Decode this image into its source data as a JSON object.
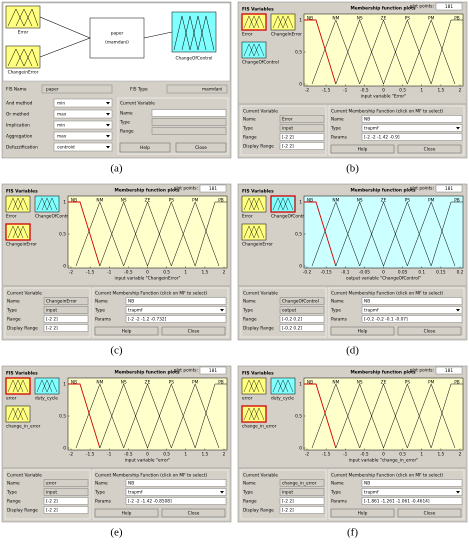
{
  "figure": {
    "panels": [
      {
        "label": "(a)",
        "inputs": [
          "Error",
          "ChangeinError"
        ],
        "system": {
          "name": "paper",
          "type": "(mamdani)"
        },
        "output": "ChangeOfControl",
        "fis_name_label": "FIS Name",
        "fis_name": "paper",
        "fis_type_label": "FIS Type",
        "fis_type": "mamdani",
        "methods": [
          {
            "name": "And method",
            "value": "min"
          },
          {
            "name": "Or method",
            "value": "max"
          },
          {
            "name": "Implication",
            "value": "min"
          },
          {
            "name": "Aggregation",
            "value": "max"
          },
          {
            "name": "Defuzzification",
            "value": "centroid"
          }
        ],
        "current_variable": {
          "title": "Current Variable",
          "fields": [
            "Name",
            "Type",
            "Range"
          ]
        },
        "buttons": [
          "Help",
          "Close"
        ]
      },
      {
        "label": "(b)",
        "variables_title": "FIS Variables",
        "variables": [
          "Error",
          "ChangeInError",
          "ChangeOfControl"
        ],
        "variable_colors": [
          "#ffff80",
          "#ffff80",
          "#80ffff"
        ],
        "selected_variable": 0,
        "plot_title": "Membership function plots",
        "plot_points_label": "plot points:",
        "plot_points": 181,
        "plot_color": "#ffffcc",
        "mf_labels": [
          "NB",
          "NM",
          "NS",
          "ZE",
          "PS",
          "PM",
          "PB"
        ],
        "yticks": [
          0,
          0.5,
          1
        ],
        "xticks": [
          -2,
          -1.5,
          -1,
          -0.5,
          0,
          0.5,
          1,
          1.5,
          2
        ],
        "xlabel": "input variable \"Error\"",
        "current_variable": {
          "title": "Current Variable",
          "fields": [
            {
              "label": "Name",
              "value": "Error"
            },
            {
              "label": "Type",
              "value": "input"
            },
            {
              "label": "Range",
              "value": "[-2 2]"
            },
            {
              "label": "Display Range",
              "value": "[-2 2]"
            }
          ]
        },
        "current_mf": {
          "title": "Current Membership Function (click on MF to select)",
          "fields": [
            {
              "label": "Name",
              "value": "NB"
            },
            {
              "label": "Type",
              "value": "trapmf"
            },
            {
              "label": "Params",
              "value": "[-2 -2 -1.42 -0.9]"
            }
          ]
        },
        "buttons": [
          "Help",
          "Close"
        ]
      },
      {
        "label": "(c)",
        "variables_title": "FIS Variables",
        "variables": [
          "Error",
          "ChangeOfControl",
          "ChangeinError"
        ],
        "variable_colors": [
          "#ffff80",
          "#80ffff",
          "#ffff80"
        ],
        "selected_variable": 2,
        "plot_title": "Membership function plots",
        "plot_points_label": "plot points:",
        "plot_points": 181,
        "plot_color": "#ffffcc",
        "mf_labels": [
          "NB",
          "NM",
          "NS",
          "ZE",
          "PS",
          "PM",
          "PB"
        ],
        "yticks": [
          0,
          0.5,
          1
        ],
        "xticks": [
          -2,
          -1.5,
          -1,
          -0.5,
          0,
          0.5,
          1,
          1.5,
          2
        ],
        "xlabel": "input variable \"ChangeinError\"",
        "current_variable": {
          "title": "Current Variable",
          "fields": [
            {
              "label": "Name",
              "value": "ChangeinError"
            },
            {
              "label": "Type",
              "value": "input"
            },
            {
              "label": "Range",
              "value": "[-2 2]"
            },
            {
              "label": "Display Range",
              "value": "[-2 2]"
            }
          ]
        },
        "current_mf": {
          "title": "Current Membership Function (click on MF to select)",
          "fields": [
            {
              "label": "Name",
              "value": "NB"
            },
            {
              "label": "Type",
              "value": "trapmf"
            },
            {
              "label": "Params",
              "value": "[-2 -2 -1.2 -0.732]"
            }
          ]
        },
        "buttons": [
          "Help",
          "Close"
        ]
      },
      {
        "label": "(d)",
        "variables_title": "FIS Variables",
        "variables": [
          "Error",
          "ChangeOfControl",
          "ChangeinError"
        ],
        "variable_colors": [
          "#ffff80",
          "#80ffff",
          "#ffff80"
        ],
        "selected_variable": 1,
        "plot_title": "Membership function plots",
        "plot_points_label": "plot points:",
        "plot_points": 181,
        "plot_color": "#ccffff",
        "mf_labels": [
          "NB",
          "NM",
          "NS",
          "ZE",
          "PS",
          "PM",
          "PB"
        ],
        "yticks": [
          0,
          0.5,
          1
        ],
        "xticks": [
          -0.2,
          -0.15,
          -0.1,
          -0.05,
          0,
          0.05,
          0.1,
          0.15,
          0.2
        ],
        "xlabel": "output variable \"ChangeOfControl\"",
        "current_variable": {
          "title": "Current Variable",
          "fields": [
            {
              "label": "Name",
              "value": "ChangeOfControl"
            },
            {
              "label": "Type",
              "value": "output"
            },
            {
              "label": "Range",
              "value": "[-0.2 0.2]"
            },
            {
              "label": "Display Range",
              "value": "[-0.2 0.2]"
            }
          ]
        },
        "current_mf": {
          "title": "Current Membership Function (click on MF to select)",
          "fields": [
            {
              "label": "Name",
              "value": "NB"
            },
            {
              "label": "Type",
              "value": "trapmf"
            },
            {
              "label": "Params",
              "value": "[-0.2 -0.2 -0.1 -0.07]"
            }
          ]
        },
        "buttons": [
          "Help",
          "Close"
        ]
      },
      {
        "label": "(e)",
        "variables_title": "FIS Variables",
        "variables": [
          "error",
          "duty_cycle",
          "change_in_error"
        ],
        "variable_colors": [
          "#ffff80",
          "#80ffff",
          "#ffff80"
        ],
        "selected_variable": 0,
        "plot_title": "Membership function plots",
        "plot_points_label": "plot points:",
        "plot_points": 181,
        "plot_color": "#ffffcc",
        "mf_labels": [
          "NB",
          "NM",
          "NS",
          "ZE",
          "PS",
          "PM",
          "PB"
        ],
        "yticks": [
          0,
          0.5,
          1
        ],
        "xticks": [
          -2,
          -1.5,
          -1,
          -0.5,
          0,
          0.5,
          1,
          1.5,
          2
        ],
        "xlabel": "input variable \"error\"",
        "current_variable": {
          "title": "Current Variable",
          "fields": [
            {
              "label": "Name",
              "value": "error"
            },
            {
              "label": "Type",
              "value": "input"
            },
            {
              "label": "Range",
              "value": "[-2 2]"
            },
            {
              "label": "Display Range",
              "value": "[-2 2]"
            }
          ]
        },
        "current_mf": {
          "title": "Current Membership Function (click on MF to select)",
          "fields": [
            {
              "label": "Name",
              "value": "NB"
            },
            {
              "label": "Type",
              "value": "trapmf"
            },
            {
              "label": "Params",
              "value": "[-2 -2 -1.42 -0.8508]"
            }
          ]
        },
        "buttons": [
          "Help",
          "Close"
        ]
      },
      {
        "label": "(f)",
        "variables_title": "FIS Variables",
        "variables": [
          "error",
          "duty_cycle",
          "change_in_error"
        ],
        "variable_colors": [
          "#ffff80",
          "#80ffff",
          "#ffff80"
        ],
        "selected_variable": 2,
        "plot_title": "Membership function plots",
        "plot_points_label": "plot points:",
        "plot_points": 181,
        "plot_color": "#ffffcc",
        "mf_labels": [
          "NB",
          "NM",
          "NS",
          "ZE",
          "PS",
          "PM",
          "PB"
        ],
        "yticks": [
          0,
          0.5,
          1
        ],
        "xticks": [
          -2,
          -1.5,
          -1,
          -0.5,
          0,
          0.5,
          1,
          1.5,
          2
        ],
        "xlabel": "input variable \"change_in_error\"",
        "current_variable": {
          "title": "Current Variable",
          "fields": [
            {
              "label": "Name",
              "value": "change_in_error"
            },
            {
              "label": "Type",
              "value": "input"
            },
            {
              "label": "Range",
              "value": "[-2 2]"
            },
            {
              "label": "Display Range",
              "value": "[-2 2]"
            }
          ]
        },
        "current_mf": {
          "title": "Current Membership Function (click on MF to select)",
          "fields": [
            {
              "label": "Name",
              "value": "NB"
            },
            {
              "label": "Type",
              "value": "trapmf"
            },
            {
              "label": "Params",
              "value": "[-1.861 -1.261 -1.061 -0.4614]"
            }
          ]
        },
        "buttons": [
          "Help",
          "Close"
        ]
      }
    ]
  }
}
